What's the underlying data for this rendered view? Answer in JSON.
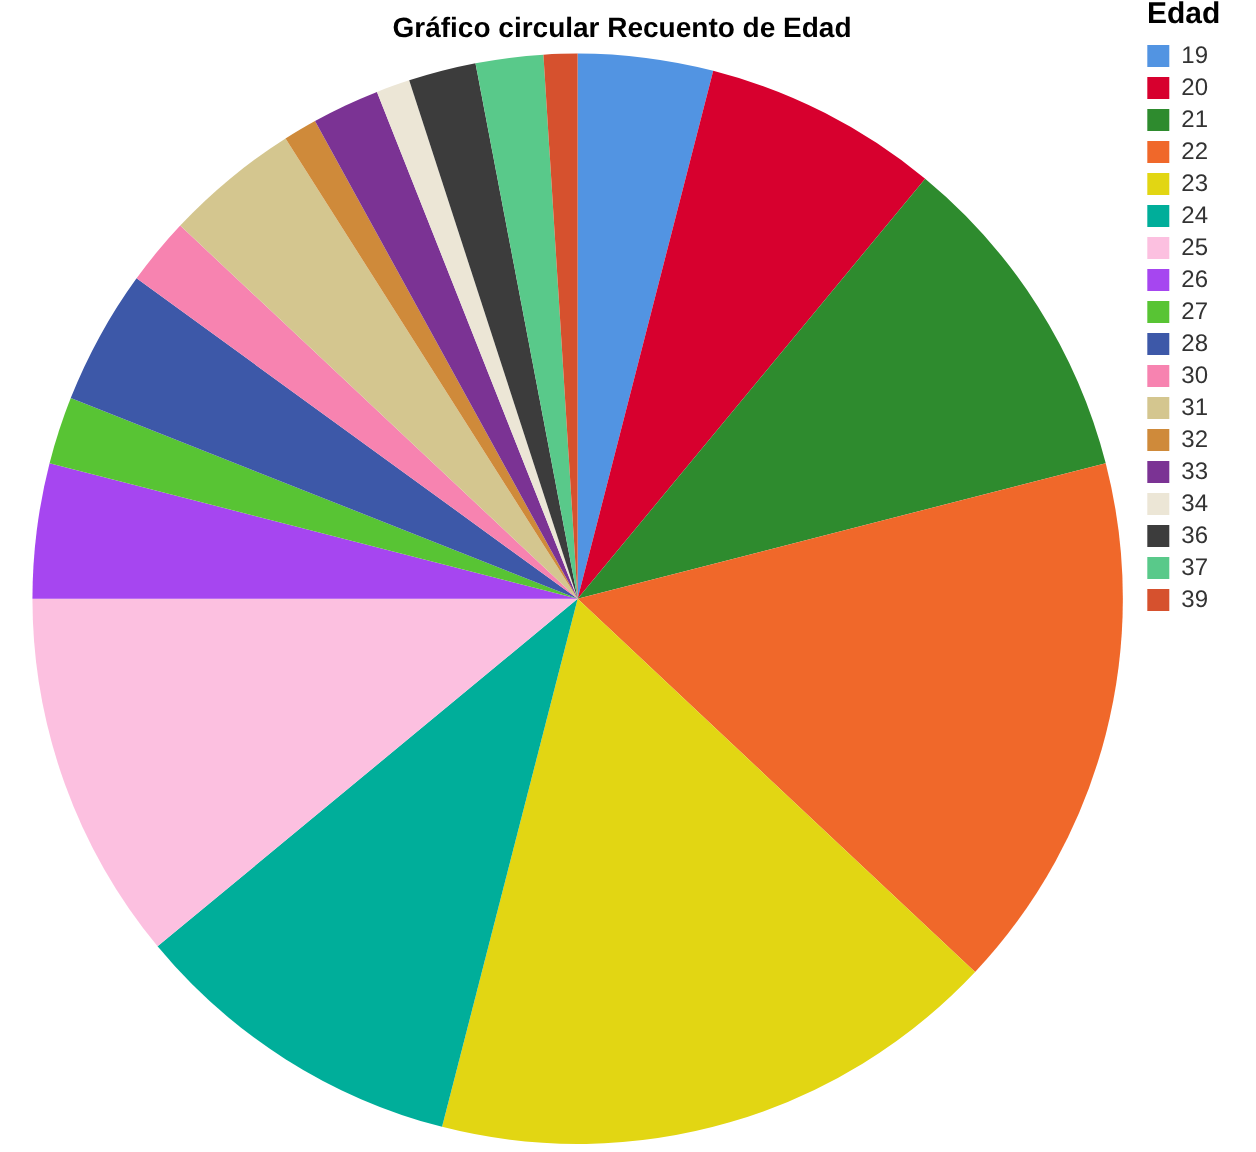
{
  "chart_data": {
    "type": "pie",
    "title": "Gráfico circular Recuento de Edad",
    "legend_title": "Edad",
    "legend": "right",
    "categories": [
      "19",
      "20",
      "21",
      "22",
      "23",
      "24",
      "25",
      "26",
      "27",
      "28",
      "30",
      "31",
      "32",
      "33",
      "34",
      "36",
      "37",
      "39"
    ],
    "values": [
      4,
      7,
      10,
      16,
      17,
      10,
      11,
      4,
      2,
      4,
      2,
      4,
      1,
      2,
      1,
      2,
      2,
      1
    ],
    "colors": [
      "#5294e2",
      "#d7002e",
      "#2e8b2e",
      "#f0682a",
      "#e2d613",
      "#00ae9a",
      "#fcc0e0",
      "#a646f0",
      "#58c434",
      "#3d58a8",
      "#f783b0",
      "#d4c68f",
      "#cf8a3a",
      "#7b3394",
      "#ece6d6",
      "#3c3c3c",
      "#59c98a",
      "#d6512e"
    ]
  }
}
